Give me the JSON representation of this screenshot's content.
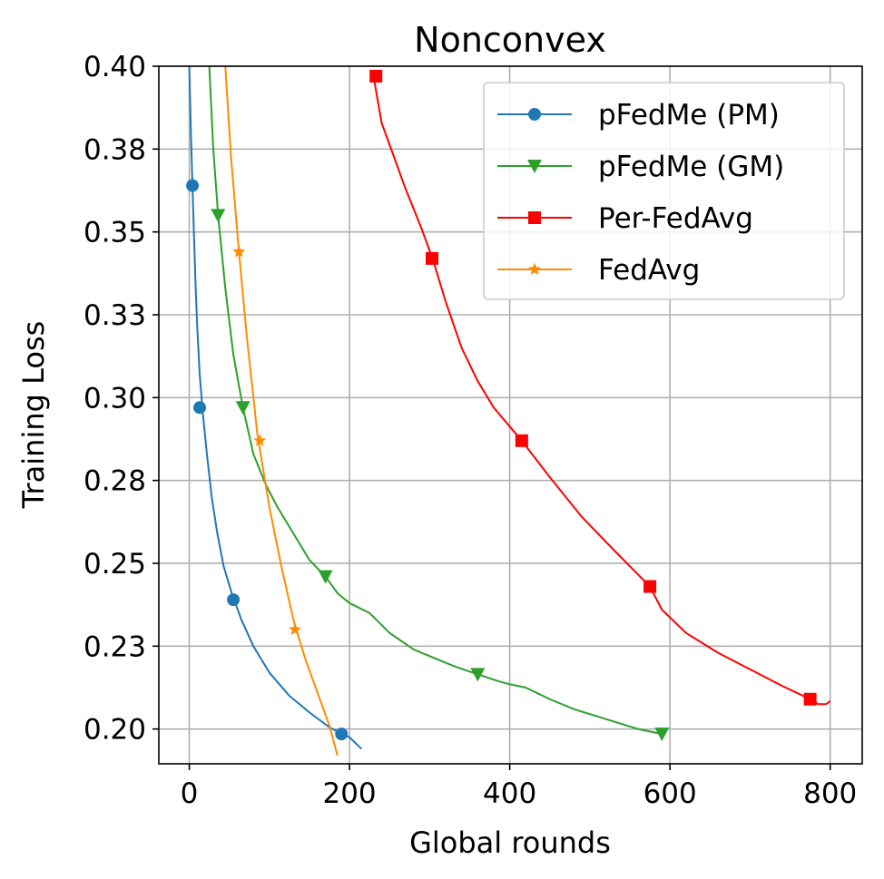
{
  "chart_data": {
    "type": "line",
    "title": "Nonconvex",
    "xlabel": "Global rounds",
    "ylabel": "Training Loss",
    "xlim": [
      -38,
      840
    ],
    "ylim": [
      0.1895,
      0.4
    ],
    "xticks": [
      0,
      200,
      400,
      600,
      800
    ],
    "xtick_labels": [
      "0",
      "200",
      "400",
      "600",
      "800"
    ],
    "yticks": [
      0.2,
      0.225,
      0.25,
      0.275,
      0.3,
      0.325,
      0.35,
      0.375,
      0.4
    ],
    "ytick_labels": [
      "0.20",
      "0.23",
      "0.25",
      "0.28",
      "0.30",
      "0.33",
      "0.35",
      "0.38",
      "0.40"
    ],
    "grid": true,
    "legend_position": "top-right",
    "series": [
      {
        "name": "pFedMe (PM)",
        "color": "#1f77b4",
        "marker": "circle",
        "x": [
          0,
          2,
          4,
          6,
          8,
          10,
          13,
          17,
          22,
          28,
          35,
          43,
          53,
          65,
          80,
          100,
          125,
          150,
          175,
          190,
          200,
          215
        ],
        "y": [
          0.4,
          0.38,
          0.364,
          0.348,
          0.333,
          0.321,
          0.307,
          0.295,
          0.283,
          0.27,
          0.259,
          0.249,
          0.241,
          0.233,
          0.225,
          0.217,
          0.21,
          0.205,
          0.2005,
          0.1985,
          0.1975,
          0.194
        ],
        "markers_x": [
          4,
          13,
          55,
          190
        ],
        "markers_y": [
          0.364,
          0.297,
          0.239,
          0.1985
        ]
      },
      {
        "name": "pFedMe (GM)",
        "color": "#2ca02c",
        "marker": "triangle-down",
        "x": [
          25,
          30,
          36,
          45,
          55,
          67,
          80,
          95,
          110,
          130,
          150,
          170,
          185,
          200,
          225,
          250,
          280,
          310,
          330,
          360,
          385,
          400,
          420,
          450,
          480,
          520,
          560,
          590
        ],
        "y": [
          0.4,
          0.375,
          0.355,
          0.333,
          0.313,
          0.297,
          0.283,
          0.274,
          0.267,
          0.259,
          0.251,
          0.246,
          0.241,
          0.238,
          0.235,
          0.229,
          0.224,
          0.221,
          0.219,
          0.2165,
          0.2145,
          0.2135,
          0.2125,
          0.209,
          0.206,
          0.203,
          0.2,
          0.1985
        ],
        "markers_x": [
          36,
          67,
          170,
          360,
          590
        ],
        "markers_y": [
          0.355,
          0.297,
          0.246,
          0.2165,
          0.1985
        ]
      },
      {
        "name": "Per-FedAvg",
        "color": "#ff0000",
        "marker": "square",
        "x": [
          230,
          240,
          255,
          270,
          290,
          305,
          320,
          340,
          360,
          380,
          415,
          450,
          490,
          530,
          575,
          590,
          620,
          660,
          700,
          740,
          775,
          785,
          795,
          800
        ],
        "y": [
          0.397,
          0.383,
          0.373,
          0.363,
          0.351,
          0.341,
          0.329,
          0.315,
          0.305,
          0.297,
          0.287,
          0.276,
          0.264,
          0.254,
          0.243,
          0.236,
          0.229,
          0.223,
          0.218,
          0.213,
          0.209,
          0.2075,
          0.2075,
          0.2085
        ],
        "markers_x": [
          233,
          303,
          415,
          575,
          775
        ],
        "markers_y": [
          0.397,
          0.342,
          0.287,
          0.243,
          0.209
        ]
      },
      {
        "name": "FedAvg",
        "color": "#ff8c00",
        "marker": "star",
        "x": [
          45,
          52,
          62,
          72,
          85,
          100,
          115,
          130,
          145,
          160,
          175,
          185
        ],
        "y": [
          0.4,
          0.373,
          0.344,
          0.318,
          0.289,
          0.267,
          0.249,
          0.233,
          0.221,
          0.211,
          0.201,
          0.192
        ],
        "markers_x": [
          62,
          88,
          132
        ],
        "markers_y": [
          0.344,
          0.287,
          0.23
        ]
      }
    ]
  }
}
